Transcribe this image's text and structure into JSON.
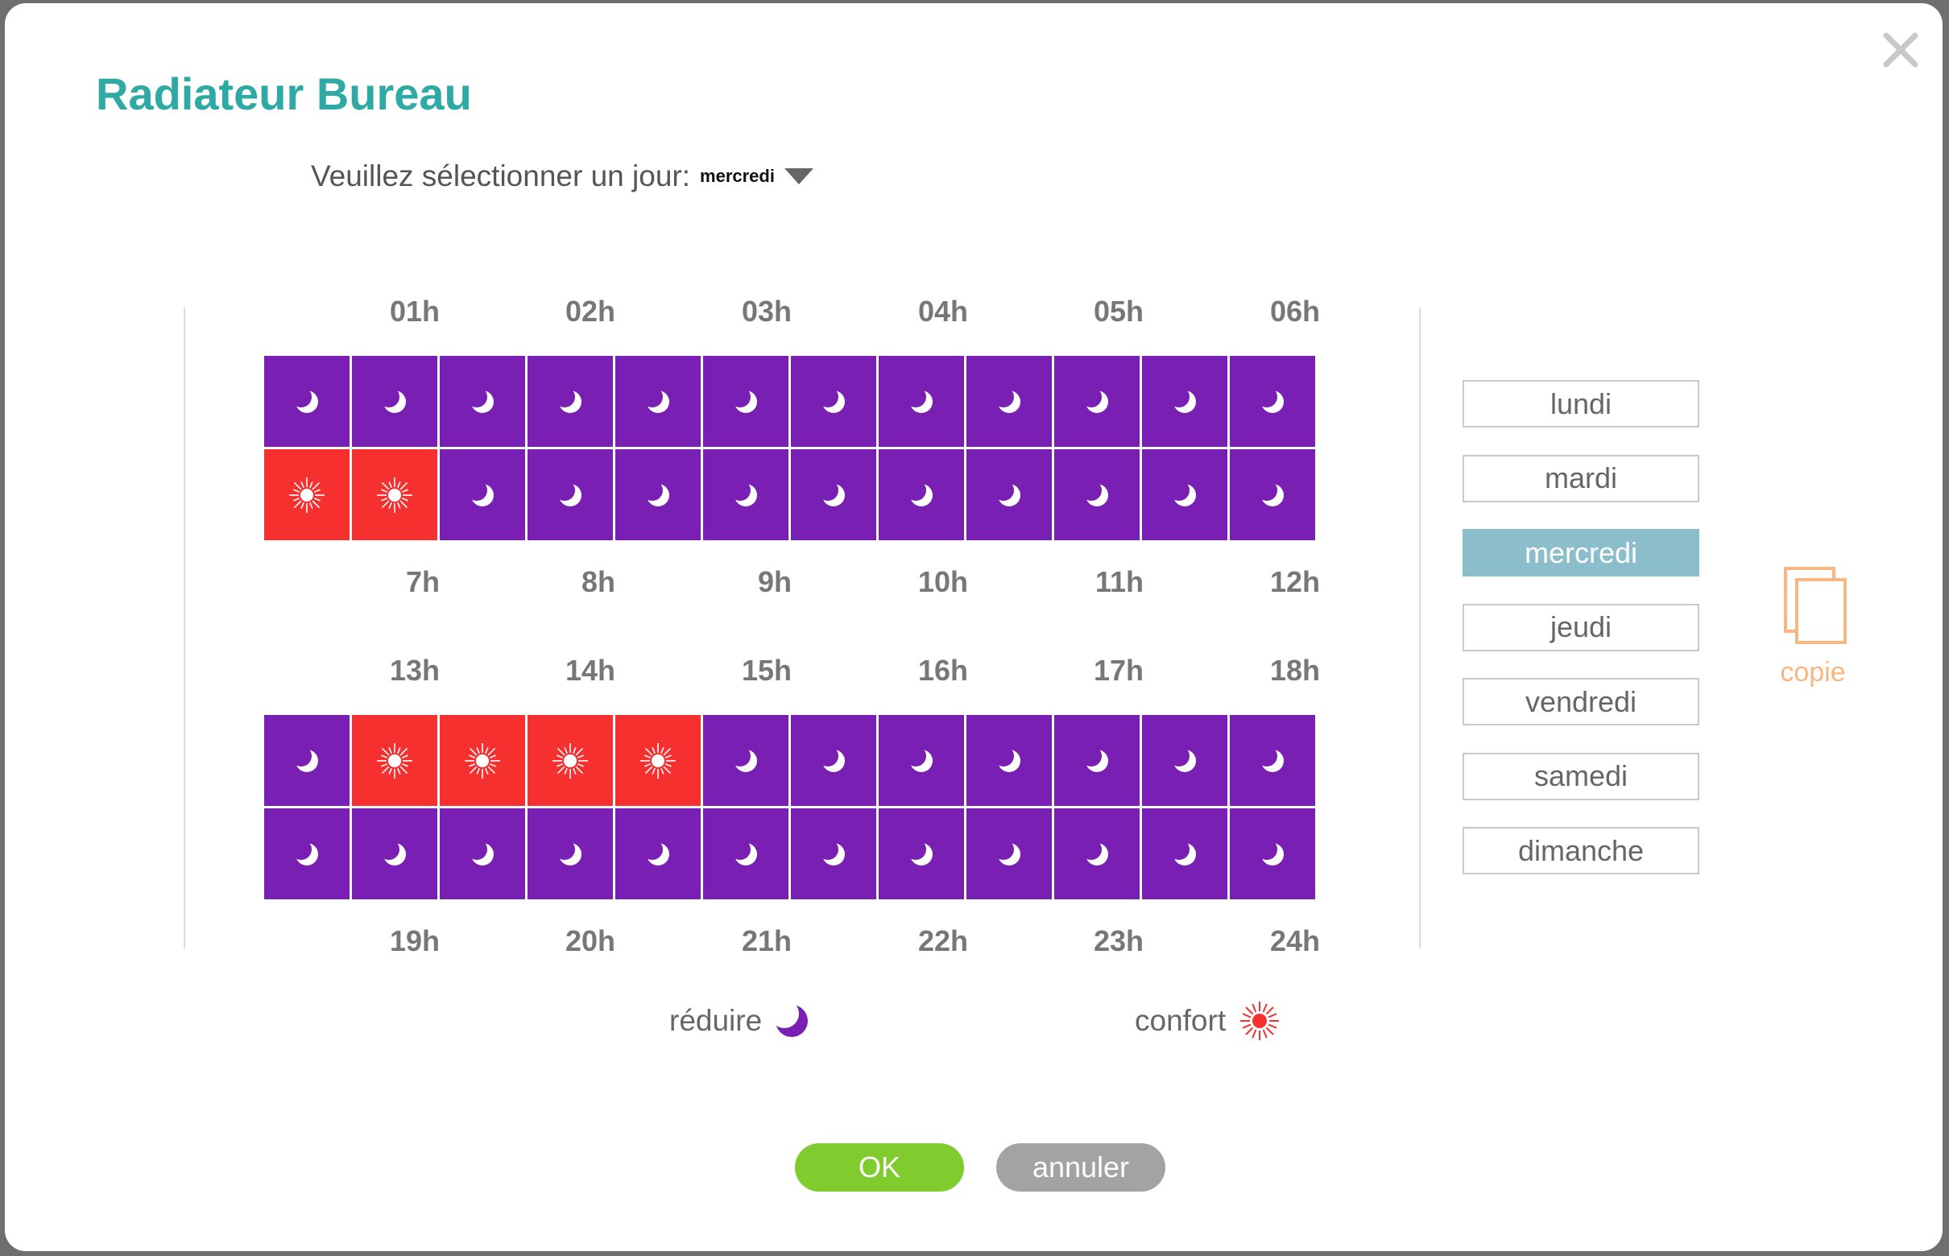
{
  "dialog": {
    "title": "Radiateur Bureau"
  },
  "day_select": {
    "label": "Veuillez sélectionner un jour:",
    "value": "mercredi"
  },
  "hour_labels": {
    "row1_top": [
      "01h",
      "02h",
      "03h",
      "04h",
      "05h",
      "06h"
    ],
    "row1_bottom": [
      "7h",
      "8h",
      "9h",
      "10h",
      "11h",
      "12h"
    ],
    "row2_top": [
      "13h",
      "14h",
      "15h",
      "16h",
      "17h",
      "18h"
    ],
    "row2_bottom": [
      "19h",
      "20h",
      "21h",
      "22h",
      "23h",
      "24h"
    ]
  },
  "schedule": {
    "rows": [
      [
        "r",
        "r",
        "r",
        "r",
        "r",
        "r",
        "r",
        "r",
        "r",
        "r",
        "r",
        "r"
      ],
      [
        "c",
        "c",
        "r",
        "r",
        "r",
        "r",
        "r",
        "r",
        "r",
        "r",
        "r",
        "r"
      ],
      [
        "r",
        "c",
        "c",
        "c",
        "c",
        "r",
        "r",
        "r",
        "r",
        "r",
        "r",
        "r"
      ],
      [
        "r",
        "r",
        "r",
        "r",
        "r",
        "r",
        "r",
        "r",
        "r",
        "r",
        "r",
        "r"
      ]
    ]
  },
  "days": [
    "lundi",
    "mardi",
    "mercredi",
    "jeudi",
    "vendredi",
    "samedi",
    "dimanche"
  ],
  "selected_day": "mercredi",
  "copy_label": "copie",
  "legend": {
    "reduire": "réduire",
    "confort": "confort"
  },
  "buttons": {
    "ok": "OK",
    "cancel": "annuler"
  },
  "colors": {
    "title": "#2ea9a3",
    "reduire": "#7a1fb3",
    "confort": "#f62f2f",
    "selected_day": "#8bbdcb",
    "ok": "#80cc2e",
    "cancel": "#a3a3a3",
    "copy": "#f8b782"
  },
  "icons": {
    "reduire": "moon-icon",
    "confort": "sun-icon",
    "close": "close-icon",
    "copy": "copy-icon"
  }
}
